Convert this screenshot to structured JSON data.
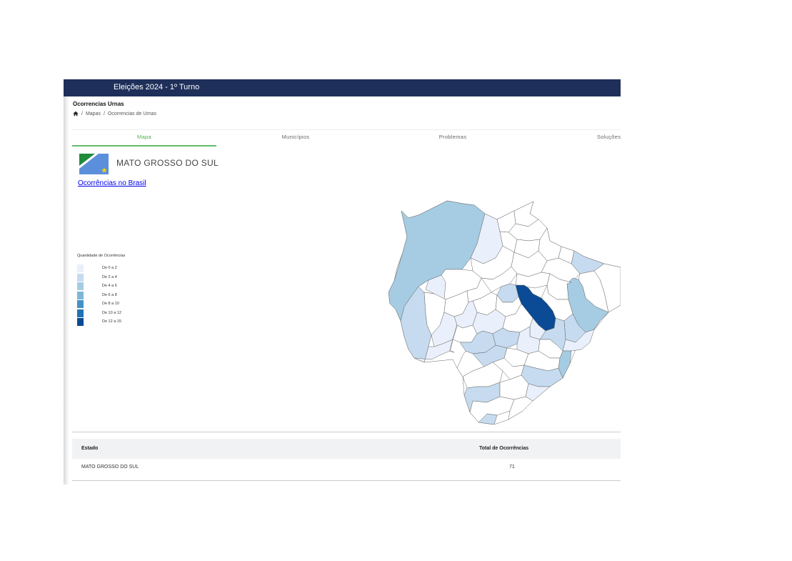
{
  "header": {
    "title": "Eleições 2024 - 1º Turno"
  },
  "page": {
    "title": "Ocorrencias Urnas",
    "breadcrumb": [
      "Mapas",
      "Ocorrencias de Urnas"
    ],
    "breadcrumb_separator": "/"
  },
  "tabs": [
    {
      "label": "Mapa",
      "active": true
    },
    {
      "label": "Municípios",
      "active": false
    },
    {
      "label": "Problemas",
      "active": false
    },
    {
      "label": "Soluções",
      "active": false
    }
  ],
  "state": {
    "name": "MATO GROSSO DO SUL",
    "flag_colors": [
      "#1f8a3c",
      "#ffffff",
      "#5b8fdc",
      "#f5d500"
    ]
  },
  "links": {
    "brasil": "Ocorrências no Brasil"
  },
  "legend": {
    "title": "Quantidade de Ocorrências",
    "items": [
      {
        "label": "De 0 a 2",
        "color": "#eaf0fb"
      },
      {
        "label": "De 2 a 4",
        "color": "#c6dbef"
      },
      {
        "label": "De 4 a 6",
        "color": "#a5cce2"
      },
      {
        "label": "De 6 a 8",
        "color": "#7fb6d8"
      },
      {
        "label": "De 8 a 10",
        "color": "#4292c6"
      },
      {
        "label": "De 10 a 12",
        "color": "#2171b5"
      },
      {
        "label": "De 12 a 15",
        "color": "#0b4a94"
      }
    ]
  },
  "table": {
    "headers": {
      "estado": "Estado",
      "total": "Total de Ocorrências"
    },
    "rows": [
      {
        "estado": "MATO GROSSO DO SUL",
        "total": "71"
      }
    ]
  }
}
